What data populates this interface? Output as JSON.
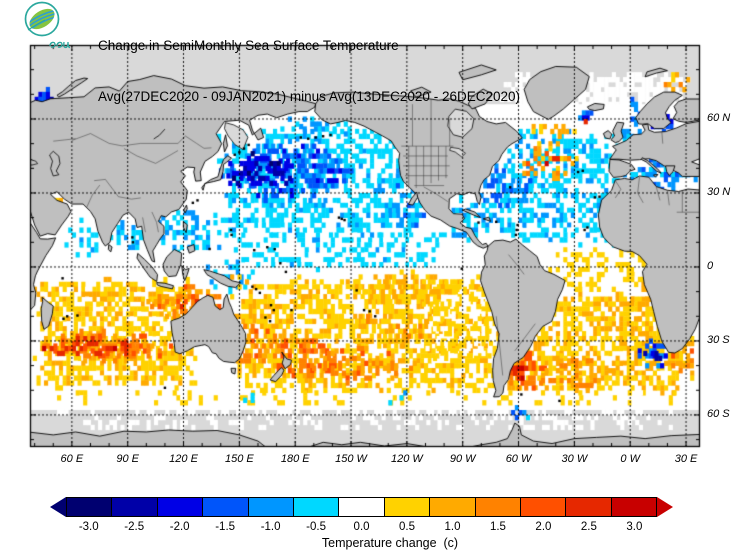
{
  "header": {
    "title_line1": "Change in SemiMonthly Sea Surface Temperature",
    "title_line2": "Avg(27DEC2020 - 09JAN2021) minus Avg(13DEC2020 - 26DEC2020)",
    "logo_text": "สสน"
  },
  "map": {
    "lat_labels": [
      {
        "value": 60,
        "label": "60 N"
      },
      {
        "value": 30,
        "label": "30 N"
      },
      {
        "value": 0,
        "label": "0"
      },
      {
        "value": -30,
        "label": "30 S"
      },
      {
        "value": -60,
        "label": "60 S"
      }
    ],
    "lon_labels": [
      {
        "value": 60,
        "label": "60 E"
      },
      {
        "value": 90,
        "label": "90 E"
      },
      {
        "value": 120,
        "label": "120 E"
      },
      {
        "value": 150,
        "label": "150 E"
      },
      {
        "value": 180,
        "label": "180 E"
      },
      {
        "value": 210,
        "label": "150 W"
      },
      {
        "value": 240,
        "label": "120 W"
      },
      {
        "value": 270,
        "label": "90 W"
      },
      {
        "value": 300,
        "label": "60 W"
      },
      {
        "value": 330,
        "label": "30 W"
      },
      {
        "value": 360,
        "label": "0 W"
      },
      {
        "value": 390,
        "label": "30 E"
      }
    ]
  },
  "chart_data": {
    "type": "heatmap",
    "title": "Change in SemiMonthly Sea Surface Temperature",
    "subtitle": "Avg(27DEC2020 - 09JAN2021) minus Avg(13DEC2020 - 26DEC2020)",
    "units": "degrees C",
    "projection": {
      "type": "equirectangular",
      "center": "Pacific",
      "lon_range": [
        37.5,
        397.5
      ],
      "lat_range": [
        -73,
        90
      ]
    },
    "land_color": "#bfbfbf",
    "nodata_color": "#d9d9d9",
    "ocean_color": "#ffffff",
    "colorbar": {
      "levels": [
        -3.0,
        -2.5,
        -2.0,
        -1.5,
        -1.0,
        -0.5,
        0.0,
        0.5,
        1.0,
        1.5,
        2.0,
        2.5,
        3.0
      ],
      "labels": [
        "-3.0",
        "-2.5",
        "-2.0",
        "-1.5",
        "-1.0",
        "-0.5",
        "0.0",
        "0.5",
        "1.0",
        "1.5",
        "2.0",
        "2.5",
        "3.0"
      ],
      "colors": [
        "#000070",
        "#0000a8",
        "#0000e6",
        "#0055fa",
        "#0096ff",
        "#00d8ff",
        "#ffffff",
        "#ffd200",
        "#ffaa00",
        "#ff8200",
        "#ff5000",
        "#e62800",
        "#c80000"
      ],
      "caption": "Temperature change  (c)"
    },
    "anomaly_regions": [
      {
        "name": "arctic-atlantic-white",
        "lon": [
          290,
          397
        ],
        "lat": [
          55,
          79
        ],
        "value": 0,
        "density": 0.75,
        "jitter": 0.5,
        "shape": "rect"
      },
      {
        "name": "bering-sea-white",
        "lon": [
          166,
          212
        ],
        "lat": [
          50,
          64
        ],
        "value": 0,
        "density": 0.6,
        "jitter": 0.45
      },
      {
        "name": "npac-cyan-field",
        "lon": [
          136,
          256
        ],
        "lat": [
          12,
          58
        ],
        "value": -0.5,
        "density": 0.55,
        "jitter": 0.7,
        "shape": "rect"
      },
      {
        "name": "eq-npac-cyan-band",
        "lon": [
          145,
          268
        ],
        "lat": [
          -1,
          14
        ],
        "value": -0.4,
        "density": 0.5,
        "jitter": 0.75,
        "shape": "rect"
      },
      {
        "name": "west-pac-warmpool-cyan",
        "lon": [
          126,
          164
        ],
        "lat": [
          -11,
          3
        ],
        "value": -0.7,
        "density": 0.4,
        "jitter": 0.9
      },
      {
        "name": "natl-cyan-field",
        "lon": [
          286,
          355
        ],
        "lat": [
          8,
          56
        ],
        "value": -0.5,
        "density": 0.5,
        "jitter": 0.7,
        "shape": "rect"
      },
      {
        "name": "sind-yellow-base",
        "lon": [
          39,
          128
        ],
        "lat": [
          -50,
          -4
        ],
        "value": 0.55,
        "density": 0.7,
        "jitter": 0.8,
        "shape": "rect"
      },
      {
        "name": "spac-yellow-base",
        "lon": [
          143,
          292
        ],
        "lat": [
          -52,
          -3
        ],
        "value": 0.55,
        "density": 0.65,
        "jitter": 0.8,
        "shape": "rect"
      },
      {
        "name": "satl-yellow-base",
        "lon": [
          288,
          397
        ],
        "lat": [
          -52,
          -10
        ],
        "value": 0.6,
        "density": 0.65,
        "jitter": 0.85,
        "shape": "rect"
      },
      {
        "name": "eq-atl-mixed",
        "lon": [
          312,
          372
        ],
        "lat": [
          -10,
          8
        ],
        "value": 0.3,
        "density": 0.5,
        "jitter": 0.7,
        "shape": "rect"
      },
      {
        "name": "peru-basin-pale",
        "lon": [
          248,
          292
        ],
        "lat": [
          -38,
          -6
        ],
        "value": 0.3,
        "density": 0.5,
        "jitter": 0.6,
        "shape": "rect"
      },
      {
        "name": "southern-white-specks",
        "lon": [
          38,
          397
        ],
        "lat": [
          -57,
          -50
        ],
        "value": 0.4,
        "density": 0.18,
        "jitter": 0.7,
        "shape": "rect"
      },
      {
        "name": "antarctic-band-white-specks",
        "lon": [
          38,
          397
        ],
        "lat": [
          -66,
          -58
        ],
        "value": 0,
        "density": 0.3,
        "jitter": 0,
        "shape": "rect"
      },
      {
        "name": "white-sea-blue",
        "lon": [
          38,
          52
        ],
        "lat": [
          62,
          73
        ],
        "value": -1.8,
        "density": 0.75,
        "jitter": 1.2
      },
      {
        "name": "barents-yellow-patches",
        "lon": [
          376,
          397
        ],
        "lat": [
          71,
          79
        ],
        "value": 1.0,
        "density": 0.45,
        "jitter": 1.0
      },
      {
        "name": "norway-coast-blue",
        "lon": [
          356,
          373
        ],
        "lat": [
          57,
          71
        ],
        "value": -1.2,
        "density": 0.5,
        "jitter": 1.0
      },
      {
        "name": "baltic-blue",
        "lon": [
          369,
          384
        ],
        "lat": [
          53,
          66
        ],
        "value": -1.8,
        "density": 0.65,
        "jitter": 0.9
      },
      {
        "name": "north-sea-cyan",
        "lon": [
          352,
          368
        ],
        "lat": [
          50,
          60
        ],
        "value": -0.8,
        "density": 0.45,
        "jitter": 0.8
      },
      {
        "name": "iceland-south-blue",
        "lon": [
          330,
          347
        ],
        "lat": [
          58,
          63.5
        ],
        "value": -1.5,
        "density": 0.5,
        "jitter": 0.9
      },
      {
        "name": "iceland-red-dash",
        "lon": [
          333,
          338
        ],
        "lat": [
          58,
          60
        ],
        "value": 2.4,
        "density": 0.4,
        "jitter": 0.4
      },
      {
        "name": "midatl-warm-cluster",
        "lon": [
          298,
          334
        ],
        "lat": [
          33,
          51
        ],
        "value": 1.2,
        "density": 0.45,
        "jitter": 1.3
      },
      {
        "name": "midatl-red-specks",
        "lon": [
          310,
          323
        ],
        "lat": [
          41,
          47
        ],
        "value": 2.5,
        "density": 0.35,
        "jitter": 0.6
      },
      {
        "name": "sgreenland-yellow",
        "lon": [
          303,
          332
        ],
        "lat": [
          51,
          60
        ],
        "value": 0.8,
        "density": 0.3,
        "jitter": 0.8
      },
      {
        "name": "gulfstream-blue",
        "lon": [
          277,
          309
        ],
        "lat": [
          23,
          42
        ],
        "value": -1.2,
        "density": 0.5,
        "jitter": 1.0
      },
      {
        "name": "canary-cyan",
        "lon": [
          338,
          357
        ],
        "lat": [
          10,
          34
        ],
        "value": -0.6,
        "density": 0.4,
        "jitter": 0.8
      },
      {
        "name": "mediterranean-blue",
        "lon": [
          354,
          397
        ],
        "lat": [
          30,
          44.5
        ],
        "value": -1.0,
        "density": 0.55,
        "jitter": 1.1
      },
      {
        "name": "gulf-carib-cyan",
        "lon": [
          256,
          290
        ],
        "lat": [
          9,
          30
        ],
        "value": -0.7,
        "density": 0.5,
        "jitter": 0.9
      },
      {
        "name": "florida-yellow-patch",
        "lon": [
          259,
          271
        ],
        "lat": [
          21,
          29
        ],
        "value": 0.8,
        "density": 0.3,
        "jitter": 0.7
      },
      {
        "name": "npac-blue-core",
        "lon": [
          139,
          218
        ],
        "lat": [
          25,
          52
        ],
        "value": -1.4,
        "density": 0.55,
        "jitter": 1.1
      },
      {
        "name": "japan-dark-blue-core",
        "lon": [
          140,
          182
        ],
        "lat": [
          30,
          47
        ],
        "value": -2.3,
        "density": 0.55,
        "jitter": 1.1
      },
      {
        "name": "bering-cyan",
        "lon": [
          168,
          212
        ],
        "lat": [
          50,
          63
        ],
        "value": -0.8,
        "density": 0.4,
        "jitter": 0.9
      },
      {
        "name": "nepac-coastal-cyan",
        "lon": [
          220,
          253
        ],
        "lat": [
          13,
          42
        ],
        "value": -0.9,
        "density": 0.45,
        "jitter": 0.9
      },
      {
        "name": "scs-philippine-cyan",
        "lon": [
          102,
          142
        ],
        "lat": [
          2,
          25
        ],
        "value": -0.7,
        "density": 0.45,
        "jitter": 0.9
      },
      {
        "name": "bengal-cyan",
        "lon": [
          78,
          101
        ],
        "lat": [
          3,
          21
        ],
        "value": -0.8,
        "density": 0.5,
        "jitter": 0.9
      },
      {
        "name": "bengal-orange-speck",
        "lon": [
          83,
          90
        ],
        "lat": [
          8,
          13
        ],
        "value": 1.3,
        "density": 0.45,
        "jitter": 0.5
      },
      {
        "name": "arabian-cyan",
        "lon": [
          50,
          79
        ],
        "lat": [
          1,
          20
        ],
        "value": -0.5,
        "density": 0.35,
        "jitter": 0.8
      },
      {
        "name": "swafrica-blue-blob",
        "lon": [
          362,
          383
        ],
        "lat": [
          -42,
          -29
        ],
        "value": -1.5,
        "density": 0.55,
        "jitter": 1.1
      },
      {
        "name": "swafrica-dark-core",
        "lon": [
          367,
          377
        ],
        "lat": [
          -39,
          -32
        ],
        "value": -2.3,
        "density": 0.6,
        "jitter": 0.8
      },
      {
        "name": "southern-cyan-speck-1",
        "lon": [
          148,
          163
        ],
        "lat": [
          -58,
          -51
        ],
        "value": -0.7,
        "density": 0.25,
        "jitter": 0.7
      },
      {
        "name": "southern-cyan-speck-2",
        "lon": [
          294,
          308
        ],
        "lat": [
          -63,
          -54
        ],
        "value": -1.0,
        "density": 0.3,
        "jitter": 0.8
      },
      {
        "name": "southern-cyan-speck-3",
        "lon": [
          228,
          242
        ],
        "lat": [
          -56,
          -50
        ],
        "value": -0.6,
        "density": 0.2,
        "jitter": 0.6
      },
      {
        "name": "sind-orange-band",
        "lon": [
          40,
          120
        ],
        "lat": [
          -40,
          -25
        ],
        "value": 1.6,
        "density": 0.6,
        "jitter": 1.0
      },
      {
        "name": "sind-red-core",
        "lon": [
          42,
          102
        ],
        "lat": [
          -37,
          -28
        ],
        "value": 2.4,
        "density": 0.5,
        "jitter": 0.9
      },
      {
        "name": "nw-australia-orange",
        "lon": [
          96,
          148
        ],
        "lat": [
          -22,
          -7
        ],
        "value": 1.4,
        "density": 0.5,
        "jitter": 1.0
      },
      {
        "name": "nw-australia-red-specks",
        "lon": [
          110,
          134
        ],
        "lat": [
          -18,
          -11
        ],
        "value": 2.3,
        "density": 0.3,
        "jitter": 0.6
      },
      {
        "name": "tasman-orange",
        "lon": [
          144,
          177
        ],
        "lat": [
          -43,
          -21
        ],
        "value": 1.5,
        "density": 0.5,
        "jitter": 1.0
      },
      {
        "name": "nz-east-orange",
        "lon": [
          166,
          208
        ],
        "lat": [
          -48,
          -27
        ],
        "value": 1.7,
        "density": 0.55,
        "jitter": 1.0
      },
      {
        "name": "spac-orange-band",
        "lon": [
          183,
          248
        ],
        "lat": [
          -48,
          -32
        ],
        "value": 1.4,
        "density": 0.45,
        "jitter": 1.0
      },
      {
        "name": "spac-mid-orange",
        "lon": [
          198,
          258
        ],
        "lat": [
          -33,
          -17
        ],
        "value": 1.0,
        "density": 0.35,
        "jitter": 0.9
      },
      {
        "name": "eq-spac-yellow",
        "lon": [
          198,
          288
        ],
        "lat": [
          -15,
          -1
        ],
        "value": 0.7,
        "density": 0.45,
        "jitter": 0.8
      },
      {
        "name": "argentina-shelf-orange",
        "lon": [
          291,
          317
        ],
        "lat": [
          -52,
          -32
        ],
        "value": 1.7,
        "density": 0.55,
        "jitter": 1.0
      },
      {
        "name": "argentina-red-core",
        "lon": [
          295,
          307
        ],
        "lat": [
          -48,
          -38
        ],
        "value": 2.6,
        "density": 0.45,
        "jitter": 0.7
      },
      {
        "name": "satl-orange-band",
        "lon": [
          308,
          358
        ],
        "lat": [
          -51,
          -35
        ],
        "value": 1.2,
        "density": 0.4,
        "jitter": 1.0
      },
      {
        "name": "guinea-benguela-orange",
        "lon": [
          356,
          397
        ],
        "lat": [
          -30,
          4
        ],
        "value": 0.8,
        "density": 0.4,
        "jitter": 0.9
      },
      {
        "name": "agulhas-orange",
        "lon": [
          380,
          397
        ],
        "lat": [
          -43,
          -31
        ],
        "value": 1.4,
        "density": 0.45,
        "jitter": 1.0
      },
      {
        "name": "redsea-orange-strip",
        "lon": [
          390,
          397
        ],
        "lat": [
          13,
          28
        ],
        "value": 1.0,
        "density": 0.5,
        "jitter": 0.8
      },
      {
        "name": "persian-gulf-speck",
        "lon": [
          47,
          58
        ],
        "lat": [
          23,
          30
        ],
        "value": 0.9,
        "density": 0.4,
        "jitter": 0.7
      }
    ]
  }
}
